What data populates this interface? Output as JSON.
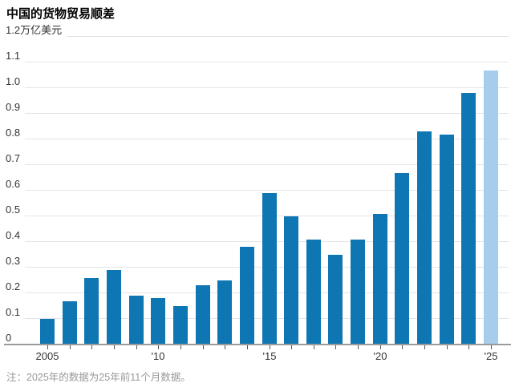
{
  "title": "中国的货物贸易顺差",
  "note": "注：2025年的数据为25年前11个月数据。",
  "chart_data": {
    "type": "bar",
    "title": "中国的货物贸易顺差",
    "unit": "万亿美元",
    "categories": [
      2005,
      2006,
      2007,
      2008,
      2009,
      2010,
      2011,
      2012,
      2013,
      2014,
      2015,
      2016,
      2017,
      2018,
      2019,
      2020,
      2021,
      2022,
      2023,
      2024,
      2025
    ],
    "values": [
      0.1,
      0.17,
      0.26,
      0.29,
      0.19,
      0.18,
      0.15,
      0.23,
      0.25,
      0.38,
      0.59,
      0.5,
      0.41,
      0.35,
      0.41,
      0.51,
      0.67,
      0.83,
      0.82,
      0.98,
      1.07
    ],
    "ylim": [
      0,
      1.2
    ],
    "grid": true,
    "y_ticks": [
      {
        "v": 1.2,
        "label": "1.2万亿美元"
      },
      {
        "v": 1.1,
        "label": "1.1"
      },
      {
        "v": 1.0,
        "label": "1.0"
      },
      {
        "v": 0.9,
        "label": "0.9"
      },
      {
        "v": 0.8,
        "label": "0.8"
      },
      {
        "v": 0.7,
        "label": "0.7"
      },
      {
        "v": 0.6,
        "label": "0.6"
      },
      {
        "v": 0.5,
        "label": "0.5"
      },
      {
        "v": 0.4,
        "label": "0.4"
      },
      {
        "v": 0.3,
        "label": "0.3"
      },
      {
        "v": 0.2,
        "label": "0.2"
      },
      {
        "v": 0.1,
        "label": "0.1"
      },
      {
        "v": 0,
        "label": "0"
      }
    ],
    "x_ticks": [
      {
        "year": 2005,
        "label": "2005"
      },
      {
        "year": 2010,
        "label": "'10"
      },
      {
        "year": 2015,
        "label": "'15"
      },
      {
        "year": 2020,
        "label": "'20"
      },
      {
        "year": 2025,
        "label": "'25"
      }
    ],
    "highlight_year": 2025,
    "highlight_meaning": "2025年的数据为25年前11个月数据",
    "colors": {
      "bar": "#0e76b2",
      "highlight_bar": "#a6cdeb",
      "gridline": "#e4e4e4",
      "axis": "#9b9b9b",
      "tick": "#555555",
      "axis_label": "#333333",
      "note": "#999999"
    }
  }
}
